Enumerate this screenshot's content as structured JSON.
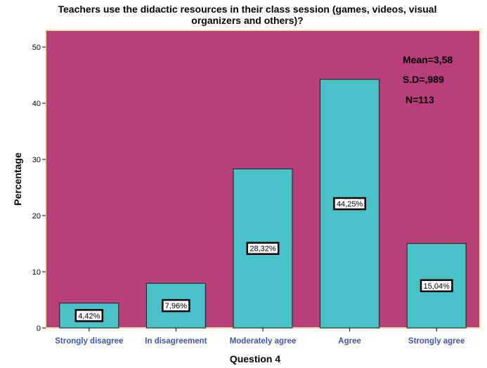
{
  "chart_data": {
    "type": "bar",
    "title_lines": [
      "Teachers use the didactic resources in their class session (games, videos, visual",
      "organizers and others)?"
    ],
    "xlabel": "Question 4",
    "ylabel": "Percentage",
    "categories": [
      "Strongly disagree",
      "In disagreement",
      "Moderately agree",
      "Agree",
      "Strongly agree"
    ],
    "values": [
      4.42,
      7.96,
      28.32,
      44.25,
      15.04
    ],
    "value_labels": [
      "4,42%",
      "7,96%",
      "28,32%",
      "44,25%",
      "15,04%"
    ],
    "ylim": [
      0,
      52
    ],
    "yticks": [
      0,
      10,
      20,
      30,
      40,
      50
    ],
    "stats": [
      "Mean=3,58",
      "S.D=,989",
      "N=113"
    ],
    "grid": false,
    "colors": {
      "plot_background": "#b93f7a",
      "plot_border": "#f5e6a8",
      "bar_fill": "#48c2c7",
      "bar_stroke": "#1a1a1a",
      "category_label": "#3f56a8"
    }
  }
}
